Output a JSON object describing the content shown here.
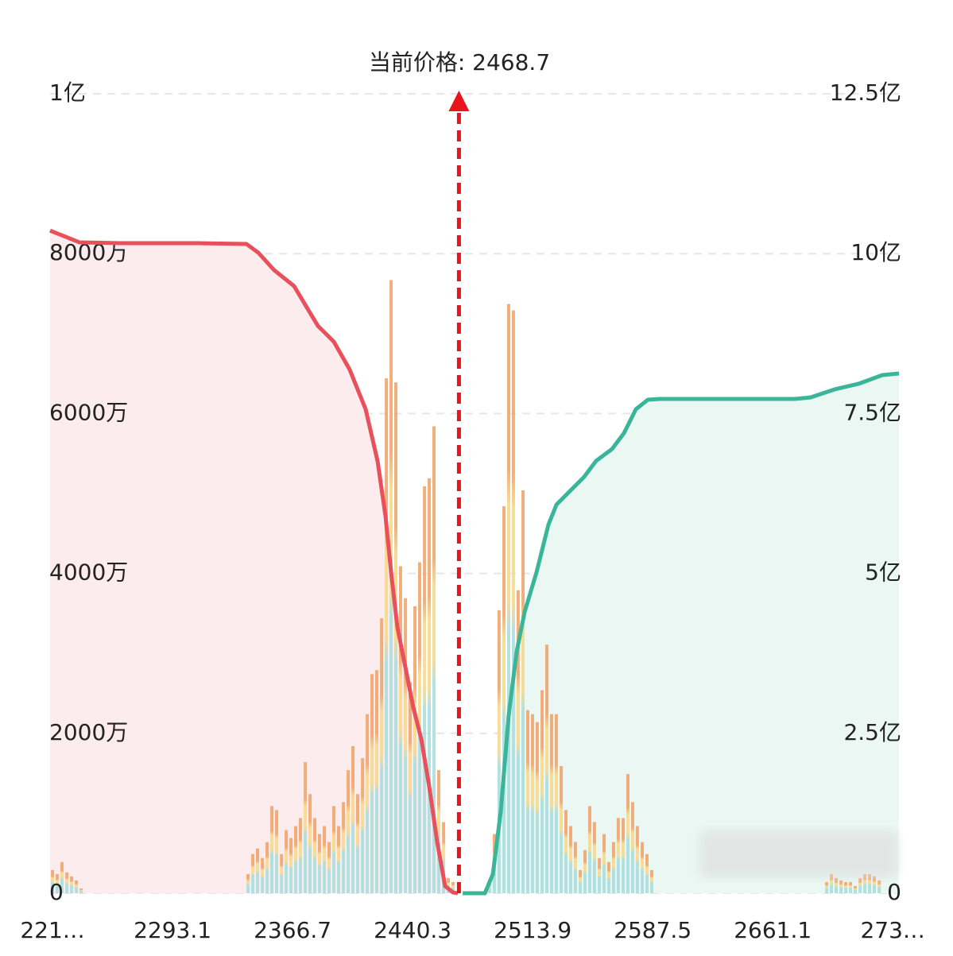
{
  "chart_data": {
    "type": "depth",
    "current_price": {
      "value": 2468.7,
      "label": "当前价格: 2468.7"
    },
    "marker_color": "#e8141b",
    "xlim": [
      2218,
      2738.5
    ],
    "xticks": [
      {
        "value": 2219.5,
        "label": "221…"
      },
      2293.1,
      2366.7,
      2440.3,
      2513.9,
      2587.5,
      2661.1,
      {
        "value": 2734.7,
        "label": "273…"
      }
    ],
    "ylim": [
      0,
      100000000
    ],
    "yticks": [
      0,
      {
        "value": 20000000,
        "label": "2000万"
      },
      {
        "value": 40000000,
        "label": "4000万"
      },
      {
        "value": 60000000,
        "label": "6000万"
      },
      {
        "value": 80000000,
        "label": "8000万"
      },
      {
        "value": 100000000,
        "label": "1亿"
      }
    ],
    "y2lim": [
      0,
      1250000000
    ],
    "y2ticks": [
      0,
      {
        "value": 250000000,
        "label": "2.5亿"
      },
      {
        "value": 500000000,
        "label": "5亿"
      },
      {
        "value": 750000000,
        "label": "7.5亿"
      },
      {
        "value": 1000000000,
        "label": "10亿"
      },
      {
        "value": 1250000000,
        "label": "12.5亿"
      }
    ],
    "grid": true,
    "bars": {
      "colors": [
        "#a9dede",
        "#f7d98a",
        "#f0a56c"
      ],
      "x": [
        2219.5,
        2222.4,
        2225.3,
        2228.3,
        2231.2,
        2234.1,
        2237.0,
        2339.4,
        2342.3,
        2345.2,
        2348.2,
        2351.1,
        2354.0,
        2356.9,
        2359.9,
        2362.8,
        2365.7,
        2368.6,
        2371.5,
        2374.5,
        2377.4,
        2380.3,
        2383.2,
        2386.2,
        2389.1,
        2392.0,
        2394.9,
        2397.9,
        2400.8,
        2403.7,
        2406.6,
        2409.6,
        2412.5,
        2415.4,
        2418.3,
        2421.3,
        2424.2,
        2427.1,
        2430.0,
        2432.9,
        2435.9,
        2438.8,
        2441.7,
        2444.6,
        2447.6,
        2450.5,
        2453.4,
        2456.3,
        2459.3,
        2462.2,
        2465.1,
        2487.5,
        2490.4,
        2493.3,
        2496.3,
        2499.2,
        2502.1,
        2505.0,
        2508.0,
        2510.9,
        2513.8,
        2516.7,
        2519.7,
        2522.6,
        2525.5,
        2528.4,
        2531.4,
        2534.3,
        2537.2,
        2540.1,
        2543.1,
        2546.0,
        2548.9,
        2551.8,
        2554.8,
        2557.7,
        2560.6,
        2563.5,
        2566.4,
        2569.4,
        2572.3,
        2575.2,
        2578.1,
        2581.1,
        2584.0,
        2586.9,
        2694.2,
        2697.1,
        2700.0,
        2703.0,
        2705.9,
        2708.8,
        2711.7,
        2714.7,
        2717.6,
        2720.5,
        2723.4,
        2726.4
      ],
      "values": [
        2900000,
        2400000,
        3900000,
        2600000,
        2100000,
        1600000,
        600000,
        2400000,
        4900000,
        5600000,
        4400000,
        6400000,
        10900000,
        10400000,
        4900000,
        7900000,
        6900000,
        8400000,
        9400000,
        16400000,
        12400000,
        9400000,
        7400000,
        8400000,
        6400000,
        10900000,
        8400000,
        11400000,
        15400000,
        18400000,
        12400000,
        16900000,
        22400000,
        27400000,
        27900000,
        34400000,
        64400000,
        76700000,
        63900000,
        40900000,
        36900000,
        26400000,
        35900000,
        41400000,
        50900000,
        51900000,
        58400000,
        15400000,
        8900000,
        1900000,
        1400000,
        1400000,
        7400000,
        35400000,
        48400000,
        73700000,
        72900000,
        37900000,
        50400000,
        22900000,
        22400000,
        21400000,
        25400000,
        31100000,
        22400000,
        22400000,
        15900000,
        10400000,
        8400000,
        6400000,
        2900000,
        5400000,
        10900000,
        8900000,
        4400000,
        7400000,
        3900000,
        6400000,
        9400000,
        9400000,
        14900000,
        11400000,
        8400000,
        6400000,
        4900000,
        2900000,
        1400000,
        2400000,
        1900000,
        1600000,
        1400000,
        1400000,
        900000,
        1900000,
        2400000,
        2400000,
        2100000,
        1600000
      ]
    },
    "series": [
      {
        "color": "#e8505b",
        "fill": "#fdeced",
        "axis": "y2",
        "x": [
          2218.0,
          2226.3,
          2236.0,
          2260.4,
          2309.1,
          2338.4,
          2345.7,
          2355.4,
          2367.6,
          2374.9,
          2382.2,
          2392.0,
          2401.7,
          2411.5,
          2418.8,
          2423.7,
          2427.1,
          2431.0,
          2435.9,
          2440.7,
          2445.6,
          2450.5,
          2455.4,
          2460.2,
          2465.1,
          2468.0
        ],
        "values": [
          1036000000,
          1027600000,
          1017700000,
          1016400000,
          1016400000,
          1015200000,
          1001500000,
          974200000,
          949300000,
          918200000,
          887200000,
          862300000,
          818800000,
          756700000,
          675900000,
          589000000,
          502000000,
          415000000,
          352900000,
          290800000,
          241100000,
          166500000,
          79500000,
          11200000,
          1200000,
          0
        ]
      },
      {
        "color": "#3bb59a",
        "fill": "#eaf7f3",
        "axis": "y2",
        "x": [
          2471.0,
          2484.6,
          2489.5,
          2494.4,
          2499.2,
          2504.1,
          2509.0,
          2516.3,
          2523.6,
          2528.5,
          2538.2,
          2545.5,
          2552.8,
          2562.6,
          2569.9,
          2577.2,
          2584.5,
          2591.8,
          2674.7,
          2684.4,
          2699.1,
          2713.7,
          2728.3,
          2738.5
        ],
        "values": [
          0,
          0,
          29800000,
          129200000,
          278300000,
          377700000,
          439900000,
          502000000,
          576500000,
          607600000,
          632400000,
          651100000,
          675900000,
          694600000,
          719400000,
          756700000,
          771600000,
          772900000,
          772900000,
          775300000,
          787800000,
          796500000,
          810100000,
          812600000
        ]
      }
    ]
  }
}
